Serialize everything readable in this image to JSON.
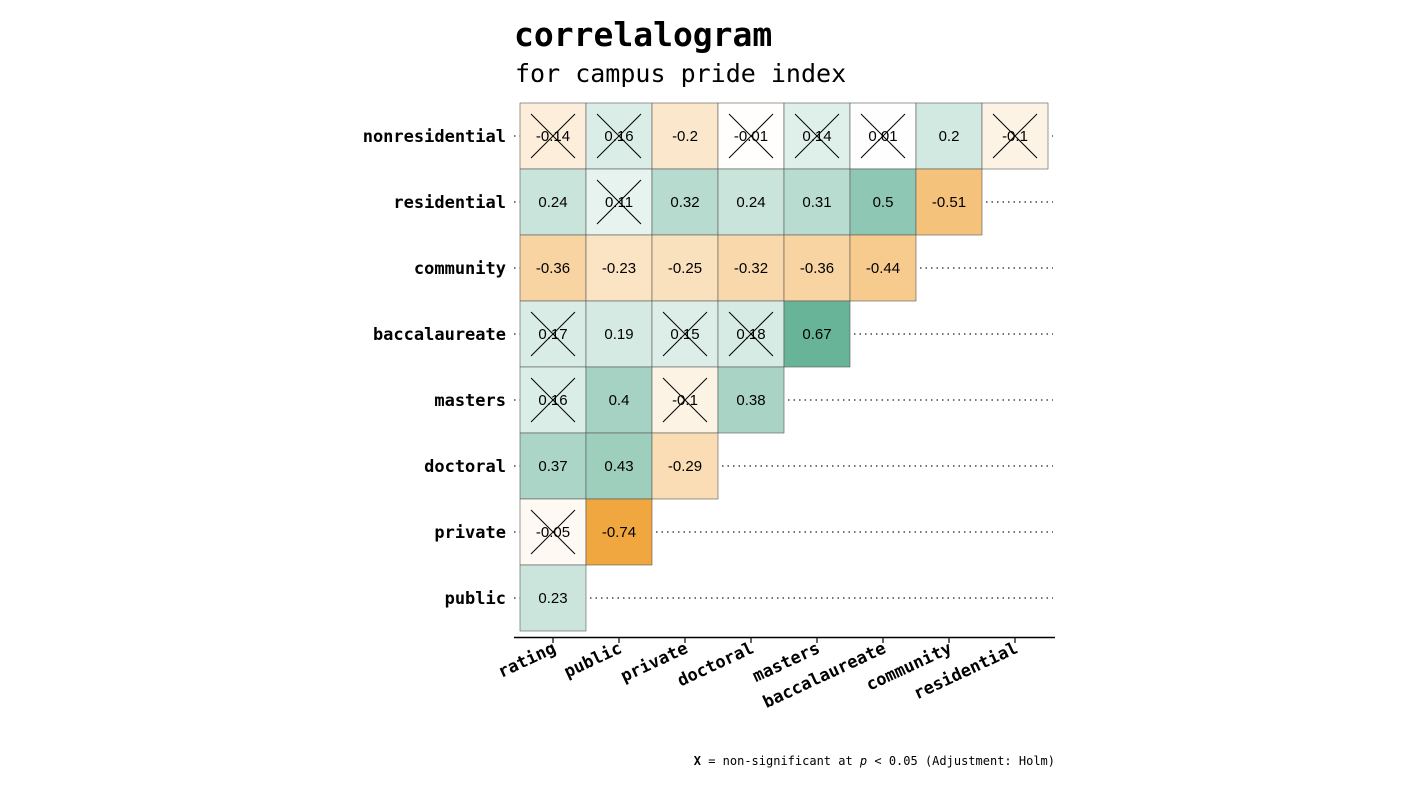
{
  "chart_data": {
    "type": "heatmap",
    "title": "correlalogram",
    "subtitle": "for campus pride index",
    "columns": [
      "rating",
      "public",
      "private",
      "doctoral",
      "masters",
      "baccalaureate",
      "community",
      "residential"
    ],
    "rows": [
      {
        "label": "nonresidential",
        "values": [
          -0.14,
          0.16,
          -0.2,
          -0.01,
          0.14,
          0.01,
          0.2,
          -0.1
        ],
        "significant": [
          false,
          false,
          true,
          false,
          false,
          false,
          true,
          false
        ]
      },
      {
        "label": "residential",
        "values": [
          0.24,
          0.11,
          0.32,
          0.24,
          0.31,
          0.5,
          -0.51
        ],
        "significant": [
          true,
          false,
          true,
          true,
          true,
          true,
          true
        ]
      },
      {
        "label": "community",
        "values": [
          -0.36,
          -0.23,
          -0.25,
          -0.32,
          -0.36,
          -0.44
        ],
        "significant": [
          true,
          true,
          true,
          true,
          true,
          true
        ]
      },
      {
        "label": "baccalaureate",
        "values": [
          0.17,
          0.19,
          0.15,
          0.18,
          0.67
        ],
        "significant": [
          false,
          true,
          false,
          false,
          true
        ]
      },
      {
        "label": "masters",
        "values": [
          0.16,
          0.4,
          -0.1,
          0.38
        ],
        "significant": [
          false,
          true,
          false,
          true
        ]
      },
      {
        "label": "doctoral",
        "values": [
          0.37,
          0.43,
          -0.29
        ],
        "significant": [
          true,
          true,
          true
        ]
      },
      {
        "label": "private",
        "values": [
          -0.05,
          -0.74
        ],
        "significant": [
          false,
          true
        ]
      },
      {
        "label": "public",
        "values": [
          0.23
        ],
        "significant": [
          true
        ]
      }
    ],
    "value_range": [
      -1,
      1
    ],
    "colors": {
      "positive": "#4aa585",
      "negative": "#f0a030",
      "neutral": "#ffffff",
      "cell_border": "#555555",
      "guide_line": "#222222"
    },
    "caption": {
      "marker": "X",
      "text_before_p": " = non-significant at ",
      "p_symbol": "p",
      "text_after_p": " < 0.05 (Adjustment: Holm)"
    }
  }
}
